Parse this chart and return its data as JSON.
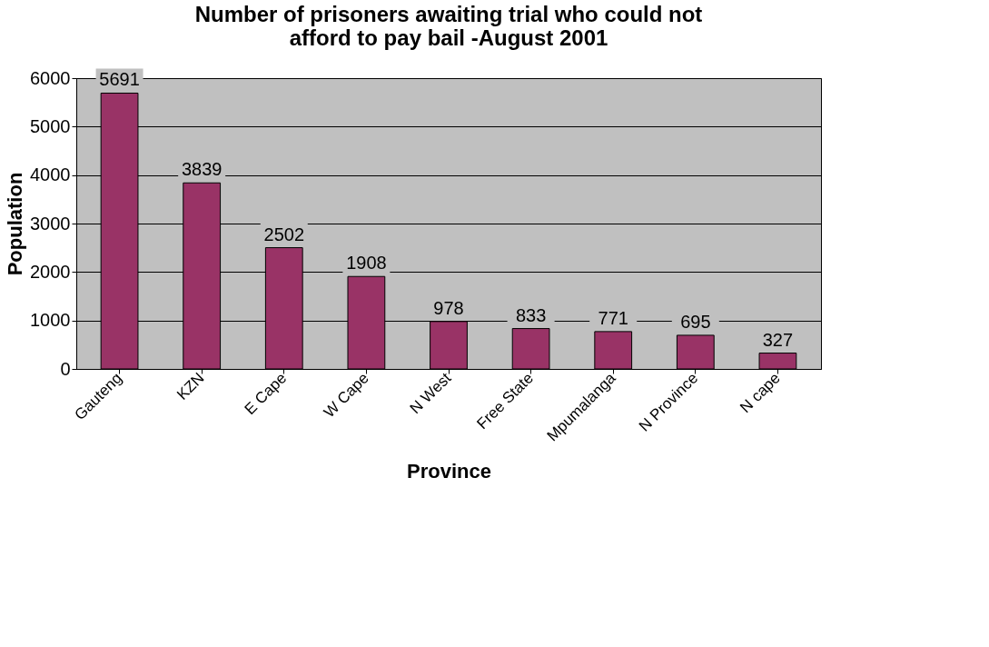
{
  "chart_data": {
    "type": "bar",
    "title": [
      "Number of prisoners awaiting trial who could not",
      "afford to pay bail -August 2001"
    ],
    "xlabel": "Province",
    "ylabel": "Population",
    "categories": [
      "Gauteng",
      "KZN",
      "E Cape",
      "W Cape",
      "N West",
      "Free State",
      "Mpumalanga",
      "N Province",
      "N cape"
    ],
    "values": [
      5691,
      3839,
      2502,
      1908,
      978,
      833,
      771,
      695,
      327
    ],
    "color": "#993366",
    "ylim": [
      0,
      6000
    ],
    "yticks": [
      0,
      1000,
      2000,
      3000,
      4000,
      5000,
      6000
    ],
    "grid": "y",
    "data_labels": true
  }
}
